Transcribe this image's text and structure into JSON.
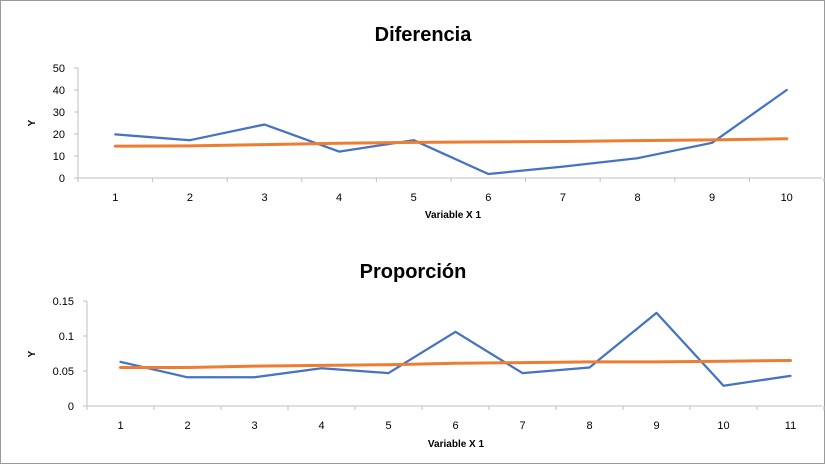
{
  "chart_data": [
    {
      "type": "line",
      "title": "Diferencia",
      "xlabel": "Variable X 1",
      "ylabel": "Y",
      "categories": [
        "1",
        "2",
        "3",
        "4",
        "5",
        "6",
        "7",
        "8",
        "9",
        "10"
      ],
      "ylim": [
        0,
        50
      ],
      "yticks": [
        0,
        10,
        20,
        30,
        40,
        50
      ],
      "ytick_labels": [
        "0",
        "10",
        "20",
        "30",
        "40",
        "50"
      ],
      "grid": false,
      "series": [
        {
          "color": "#4472C4",
          "values": [
            19.8,
            17.2,
            24.3,
            12.0,
            17.2,
            1.8,
            5.2,
            9.0,
            16.0,
            40.0
          ]
        },
        {
          "color": "#ED7D31",
          "values": [
            14.5,
            14.6,
            15.2,
            15.8,
            16.2,
            16.4,
            16.6,
            17.0,
            17.3,
            17.8
          ]
        }
      ]
    },
    {
      "type": "line",
      "title": "Proporción",
      "xlabel": "Variable X 1",
      "ylabel": "Y",
      "categories": [
        "1",
        "2",
        "3",
        "4",
        "5",
        "6",
        "7",
        "8",
        "9",
        "10",
        "11"
      ],
      "ylim": [
        0,
        0.15
      ],
      "yticks": [
        0,
        0.05,
        0.1,
        0.15
      ],
      "ytick_labels": [
        "0",
        "0.05",
        "0.1",
        "0.15"
      ],
      "grid": false,
      "series": [
        {
          "color": "#4472C4",
          "values": [
            0.063,
            0.041,
            0.041,
            0.054,
            0.047,
            0.106,
            0.047,
            0.055,
            0.133,
            0.029,
            0.043
          ]
        },
        {
          "color": "#ED7D31",
          "values": [
            0.055,
            0.055,
            0.057,
            0.058,
            0.059,
            0.061,
            0.062,
            0.063,
            0.063,
            0.064,
            0.065
          ]
        }
      ]
    }
  ]
}
